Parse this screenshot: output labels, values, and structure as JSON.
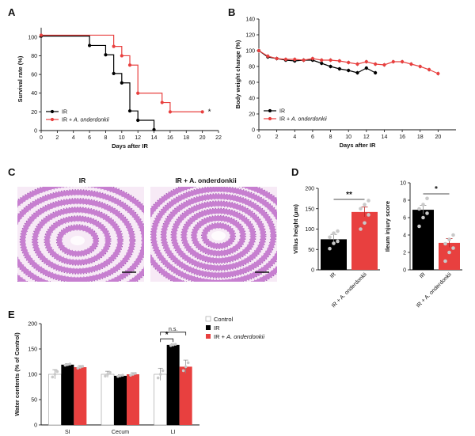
{
  "figure": {
    "panel_labels": [
      "A",
      "B",
      "C",
      "D",
      "E"
    ],
    "micrograph_titles": [
      "IR",
      "IR + A. onderdonkii"
    ],
    "micrograph_colors": {
      "background": "#f7eaf6",
      "tissue": "#c77fd0",
      "tissue_dark": "#a65bb5"
    }
  },
  "chart_data": [
    {
      "id": "A",
      "type": "line",
      "style": "step",
      "title": "",
      "xlabel": "Days after IR",
      "ylabel": "Survival rate (%)",
      "xlim": [
        0,
        22
      ],
      "ylim": [
        0,
        110
      ],
      "xticks": [
        0,
        2,
        4,
        6,
        8,
        10,
        12,
        14,
        16,
        18,
        20,
        22
      ],
      "yticks": [
        0,
        20,
        40,
        60,
        80,
        100
      ],
      "annotation": "*",
      "legend": "bottom-left",
      "series": [
        {
          "name": "IR",
          "color": "#000000",
          "x": [
            0,
            6,
            8,
            9,
            10,
            11,
            12,
            14
          ],
          "y": [
            101,
            91,
            81,
            61,
            51,
            21,
            11,
            1
          ]
        },
        {
          "name": "IR + A. onderdonkii",
          "color": "#e8403f",
          "x": [
            0,
            9,
            10,
            11,
            12,
            15,
            16,
            20
          ],
          "y": [
            102,
            90,
            80,
            70,
            40,
            30,
            20,
            20
          ]
        }
      ]
    },
    {
      "id": "B",
      "type": "line",
      "title": "",
      "xlabel": "Days after IR",
      "ylabel": "Body weight change (%)",
      "xlim": [
        0,
        22
      ],
      "ylim": [
        0,
        140
      ],
      "xticks": [
        0,
        2,
        4,
        6,
        8,
        10,
        12,
        14,
        16,
        18,
        20
      ],
      "yticks": [
        0,
        20,
        40,
        60,
        80,
        100,
        120,
        140
      ],
      "legend": "bottom-left",
      "series": [
        {
          "name": "IR",
          "color": "#000000",
          "x": [
            0,
            1,
            2,
            3,
            4,
            5,
            6,
            7,
            8,
            9,
            10,
            11,
            12,
            13
          ],
          "y": [
            100,
            92,
            90,
            88,
            87,
            88,
            88,
            84,
            80,
            77,
            75,
            72,
            78,
            72
          ]
        },
        {
          "name": "IR + A. onderdonkii",
          "color": "#e8403f",
          "x": [
            0,
            1,
            2,
            3,
            4,
            5,
            6,
            7,
            8,
            9,
            10,
            11,
            12,
            13,
            14,
            15,
            16,
            17,
            18,
            19,
            20
          ],
          "y": [
            100,
            93,
            90,
            89,
            89,
            88,
            90,
            88,
            88,
            87,
            85,
            83,
            86,
            83,
            82,
            86,
            86,
            83,
            80,
            76,
            71
          ]
        }
      ]
    },
    {
      "id": "D1",
      "type": "bar",
      "title": "",
      "xlabel": "",
      "ylabel": "Villus height (μm)",
      "categories": [
        "IR",
        "IR + A. onderdonkii"
      ],
      "values": [
        75,
        142
      ],
      "errors": [
        12,
        12
      ],
      "colors": [
        "#000000",
        "#e8403f"
      ],
      "ylim": [
        0,
        200
      ],
      "yticks": [
        0,
        50,
        100,
        150,
        200
      ],
      "points": [
        [
          52,
          65,
          70,
          80,
          90,
          95
        ],
        [
          100,
          115,
          135,
          150,
          160,
          170
        ]
      ],
      "significance": "**"
    },
    {
      "id": "D2",
      "type": "bar",
      "title": "",
      "xlabel": "",
      "ylabel": "Ileum injury score",
      "categories": [
        "IR",
        "IR + A. onderdonkii"
      ],
      "values": [
        6.9,
        3.1
      ],
      "errors": [
        0.5,
        0.5
      ],
      "colors": [
        "#000000",
        "#e8403f"
      ],
      "ylim": [
        0,
        10
      ],
      "yticks": [
        0,
        2,
        4,
        6,
        8,
        10
      ],
      "points": [
        [
          5,
          6,
          6.5,
          7,
          7.5,
          8.2
        ],
        [
          1,
          2,
          2.5,
          3,
          3.5,
          4
        ]
      ],
      "significance": "*"
    },
    {
      "id": "E",
      "type": "bar",
      "title": "",
      "xlabel": "",
      "ylabel": "Water contents (% of Control)",
      "categories": [
        "SI",
        "Cecum",
        "LI"
      ],
      "ylim": [
        0,
        200
      ],
      "yticks": [
        0,
        50,
        100,
        150,
        200
      ],
      "legend": "top-right",
      "series": [
        {
          "name": "Control",
          "color": "#ffffff",
          "values": [
            100,
            100,
            100
          ],
          "errors": [
            9,
            6,
            12
          ]
        },
        {
          "name": "IR",
          "color": "#000000",
          "values": [
            119,
            97,
            158
          ],
          "errors": [
            2,
            2,
            2
          ]
        },
        {
          "name": "IR + A. onderdonkii",
          "color": "#e8403f",
          "values": [
            114,
            100,
            115
          ],
          "errors": [
            3,
            3,
            13
          ]
        }
      ],
      "significance": [
        {
          "category": "LI",
          "between": [
            "Control",
            "IR"
          ],
          "label": "*"
        },
        {
          "category": "LI",
          "between": [
            "Control",
            "IR + A. onderdonkii"
          ],
          "label": "n.s."
        }
      ]
    }
  ]
}
